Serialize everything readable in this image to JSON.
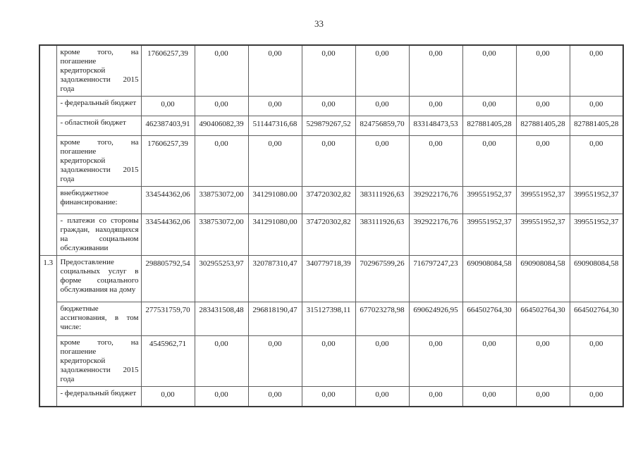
{
  "page_number": "33",
  "table": {
    "rows": [
      {
        "num": "",
        "label": "кроме того, на погашение кредиторской задолженности 2015 года",
        "values": [
          "17606257,39",
          "0,00",
          "0,00",
          "0,00",
          "0,00",
          "0,00",
          "0,00",
          "0,00",
          "0,00"
        ]
      },
      {
        "num": null,
        "label": "- федеральный бюджет",
        "values": [
          "0,00",
          "0,00",
          "0,00",
          "0,00",
          "0,00",
          "0,00",
          "0,00",
          "0,00",
          "0,00"
        ]
      },
      {
        "num": null,
        "label": "- областной бюджет",
        "values": [
          "462387403,91",
          "490406082,39",
          "511447316,68",
          "529879267,52",
          "824756859,70",
          "833148473,53",
          "827881405,28",
          "827881405,28",
          "827881405,28"
        ]
      },
      {
        "num": null,
        "label": "кроме того, на погашение кредиторской задолженности 2015 года",
        "values": [
          "17606257,39",
          "0,00",
          "0,00",
          "0,00",
          "0,00",
          "0,00",
          "0,00",
          "0,00",
          "0,00"
        ]
      },
      {
        "num": null,
        "label": "внебюджетное финансирование:",
        "values": [
          "334544362,06",
          "338753072,00",
          "341291080.00",
          "374720302,82",
          "383111926,63",
          "392922176,76",
          "399551952,37",
          "399551952,37",
          "399551952,37"
        ]
      },
      {
        "num": null,
        "label": "- платежи со стороны граждан, находящихся на социальном обслуживании",
        "values": [
          "334544362,06",
          "338753072,00",
          "341291080,00",
          "374720302,82",
          "383111926,63",
          "392922176,76",
          "399551952,37",
          "399551952,37",
          "399551952,37"
        ]
      },
      {
        "num": "1.3",
        "label": "Предоставление социальных услуг в форме социального обслуживания на дому",
        "values": [
          "298805792,54",
          "302955253,97",
          "320787310,47",
          "340779718,39",
          "702967599,26",
          "716797247,23",
          "690908084,58",
          "690908084,58",
          "690908084,58"
        ]
      },
      {
        "num": null,
        "label": "бюджетные ассигнования, в том числе:",
        "values": [
          "277531759,70",
          "283431508,48",
          "296818190,47",
          "315127398,11",
          "677023278,98",
          "690624926,95",
          "664502764,30",
          "664502764,30",
          "664502764,30"
        ]
      },
      {
        "num": null,
        "label": "кроме того, на погашение кредиторской задолженности 2015 года",
        "values": [
          "4545962,71",
          "0,00",
          "0,00",
          "0,00",
          "0,00",
          "0,00",
          "0,00",
          "0,00",
          "0,00"
        ]
      },
      {
        "num": null,
        "label": "- федеральный бюджет",
        "values": [
          "0,00",
          "0,00",
          "0,00",
          "0,00",
          "0,00",
          "0,00",
          "0,00",
          "0,00",
          "0,00"
        ]
      }
    ]
  }
}
